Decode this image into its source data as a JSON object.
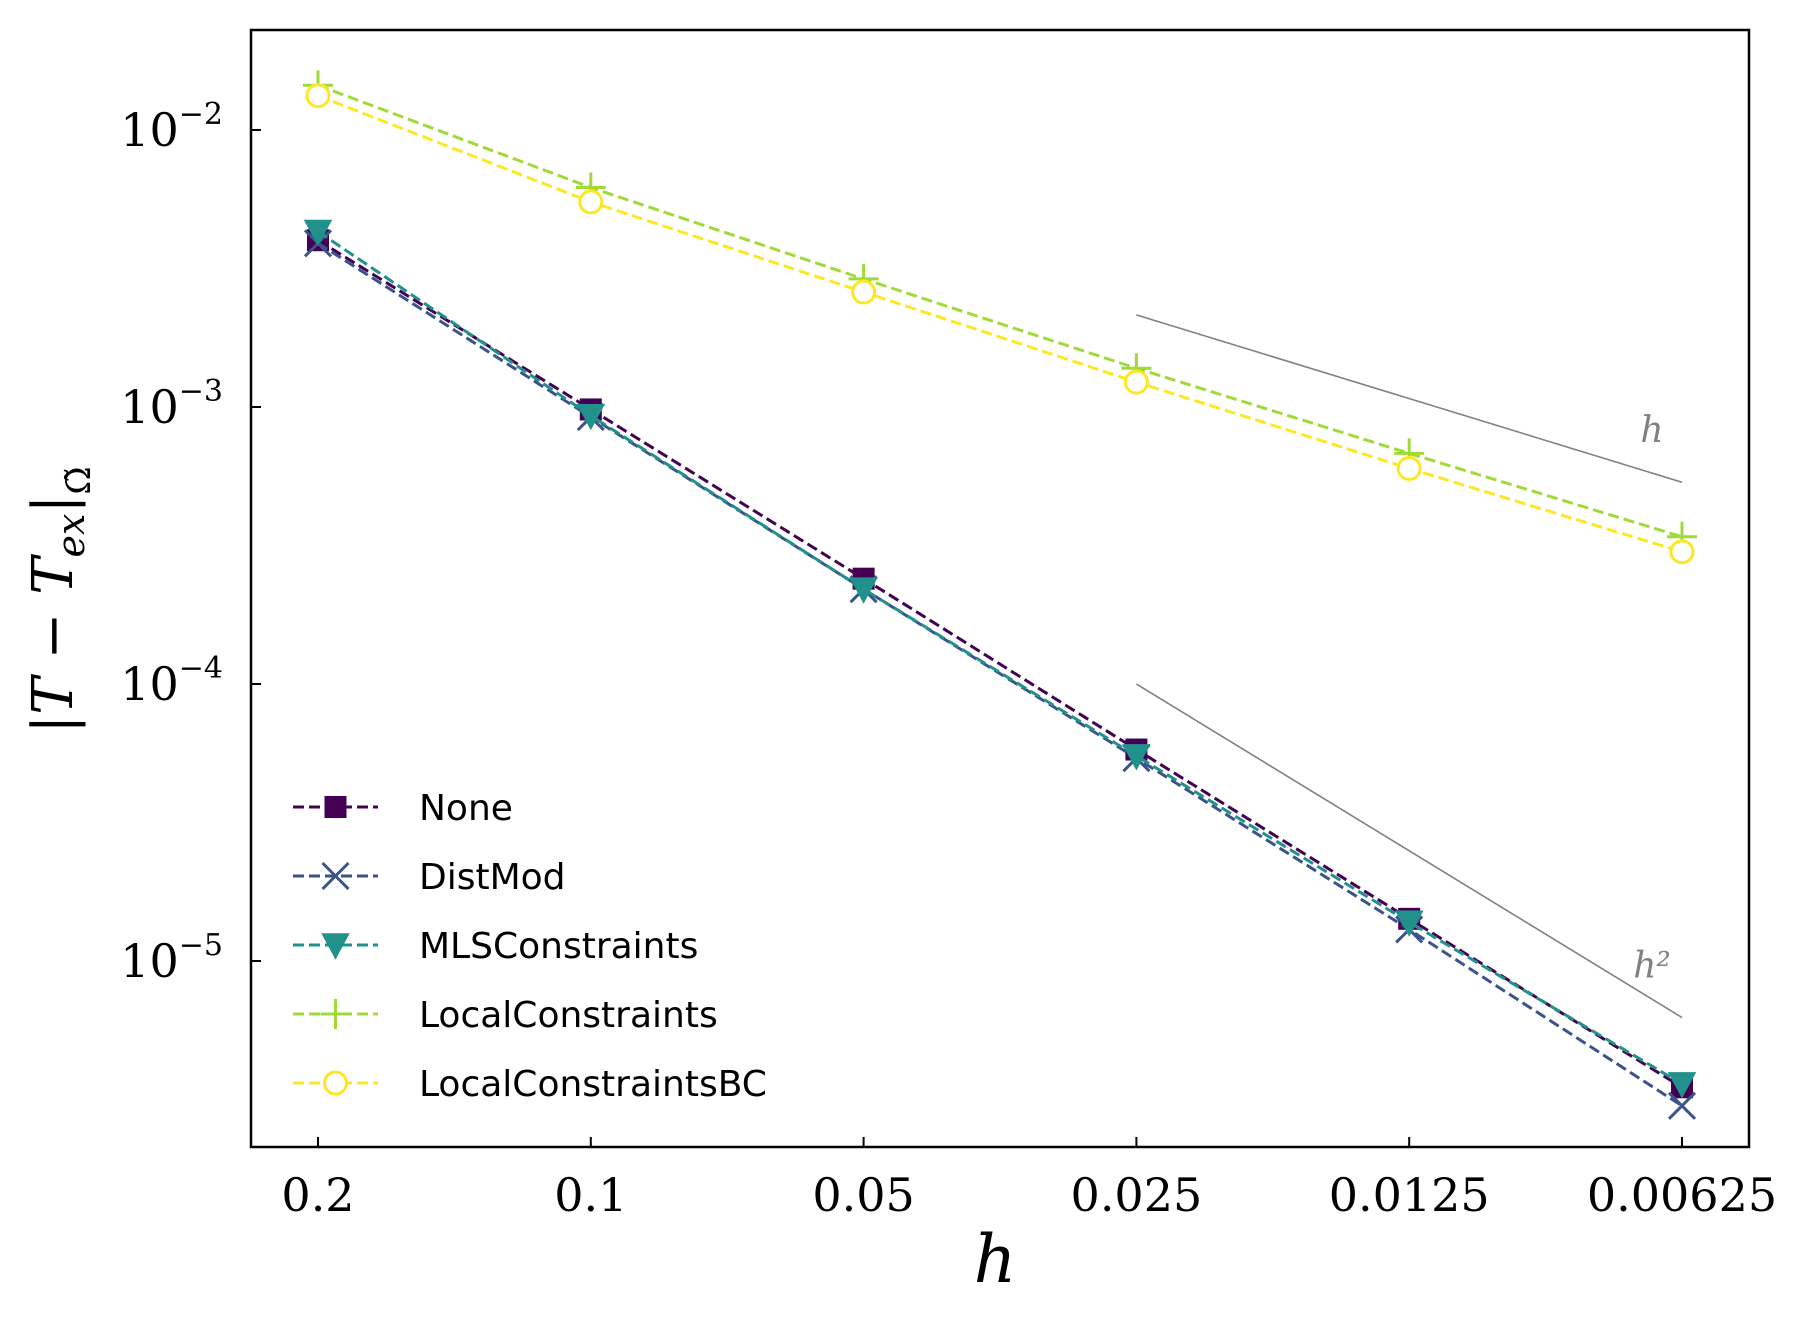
{
  "chart_data": {
    "type": "line",
    "x": [
      0.2,
      0.1,
      0.05,
      0.025,
      0.0125,
      0.00625
    ],
    "x_tick_labels": [
      "0.2",
      "0.1",
      "0.05",
      "0.025",
      "0.0125",
      "0.00625"
    ],
    "x_scale": "log",
    "x_reversed": true,
    "y_scale": "log",
    "ylim": [
      2.2e-06,
      0.022
    ],
    "y_ticks": [
      {
        "value": 0.01,
        "base": "10",
        "exp": "−2"
      },
      {
        "value": 0.001,
        "base": "10",
        "exp": "−3"
      },
      {
        "value": 0.0001,
        "base": "10",
        "exp": "−4"
      },
      {
        "value": 1e-05,
        "base": "10",
        "exp": "−5"
      }
    ],
    "xlabel": "h",
    "ylabel": "|T − Tₑₓ|Ω̃",
    "grid": false,
    "legend_position": "bottom-left",
    "series": [
      {
        "name": "None",
        "color": "#440154",
        "marker": "square",
        "values": [
          0.004,
          0.00098,
          0.00024,
          5.8e-05,
          1.42e-05,
          3.5e-06
        ]
      },
      {
        "name": "DistMod",
        "color": "#3b528b",
        "marker": "x",
        "values": [
          0.0039,
          0.00092,
          0.00022,
          5.4e-05,
          1.3e-05,
          3e-06
        ]
      },
      {
        "name": "MLSConstraints",
        "color": "#21918c",
        "marker": "triangle-down",
        "values": [
          0.0043,
          0.00093,
          0.00022,
          5.5e-05,
          1.38e-05,
          3.6e-06
        ]
      },
      {
        "name": "LocalConstraints",
        "color": "#a0da39",
        "marker": "plus",
        "values": [
          0.0145,
          0.0062,
          0.0029,
          0.00138,
          0.00068,
          0.00034
        ]
      },
      {
        "name": "LocalConstraintsBC",
        "color": "#fde725",
        "marker": "circle",
        "values": [
          0.0133,
          0.0055,
          0.0026,
          0.00123,
          0.0006,
          0.0003
        ]
      }
    ],
    "reference_lines": [
      {
        "label": "h",
        "color": "#808080",
        "x": [
          0.025,
          0.00625
        ],
        "y": [
          0.00215,
          0.000535
        ]
      },
      {
        "label": "h²",
        "color": "#808080",
        "x": [
          0.025,
          0.00625
        ],
        "y": [
          0.0001,
          6.25e-06
        ]
      }
    ]
  }
}
